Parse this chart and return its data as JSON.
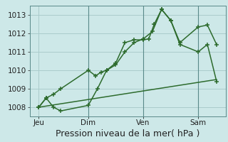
{
  "xlabel": "Pression niveau de la mer( hPa )",
  "bg_color": "#cde8e8",
  "grid_color": "#aacccc",
  "line_color": "#2d6b2d",
  "vline_color": "#5a8a8a",
  "ylim": [
    1007.5,
    1013.5
  ],
  "xlim": [
    -0.2,
    10.5
  ],
  "yticks": [
    1008,
    1009,
    1010,
    1011,
    1012,
    1013
  ],
  "xtick_labels": [
    "Jeu",
    "Dim",
    "Ven",
    "Sam"
  ],
  "xtick_positions": [
    0.3,
    3.0,
    6.0,
    9.0
  ],
  "series1_x": [
    0.3,
    0.7,
    1.1,
    1.5,
    3.0,
    3.4,
    3.7,
    4.0,
    4.5,
    5.0,
    5.5,
    6.0,
    6.3,
    6.6,
    7.0,
    7.5,
    8.0,
    9.0,
    9.5,
    10.0
  ],
  "series1_y": [
    1008.0,
    1008.5,
    1008.7,
    1009.0,
    1010.0,
    1009.7,
    1009.9,
    1010.0,
    1010.4,
    1011.5,
    1011.65,
    1011.65,
    1011.7,
    1012.5,
    1013.3,
    1012.7,
    1011.5,
    1012.35,
    1012.45,
    1011.4
  ],
  "series2_x": [
    0.3,
    0.7,
    1.1,
    1.5,
    3.0,
    3.5,
    4.0,
    4.5,
    5.0,
    5.5,
    6.0,
    6.5,
    7.0,
    7.5,
    8.0,
    9.0,
    9.5,
    10.0
  ],
  "series2_y": [
    1008.0,
    1008.5,
    1008.0,
    1007.8,
    1008.1,
    1009.0,
    1010.0,
    1010.3,
    1011.0,
    1011.5,
    1011.7,
    1012.1,
    1013.3,
    1012.7,
    1011.4,
    1011.0,
    1011.4,
    1009.4
  ],
  "trend_x": [
    0.3,
    10.0
  ],
  "trend_y": [
    1008.0,
    1009.5
  ],
  "vline_x": [
    3.0,
    6.0,
    9.0
  ],
  "fontsize_xlabel": 9,
  "fontsize_tick": 7.5
}
